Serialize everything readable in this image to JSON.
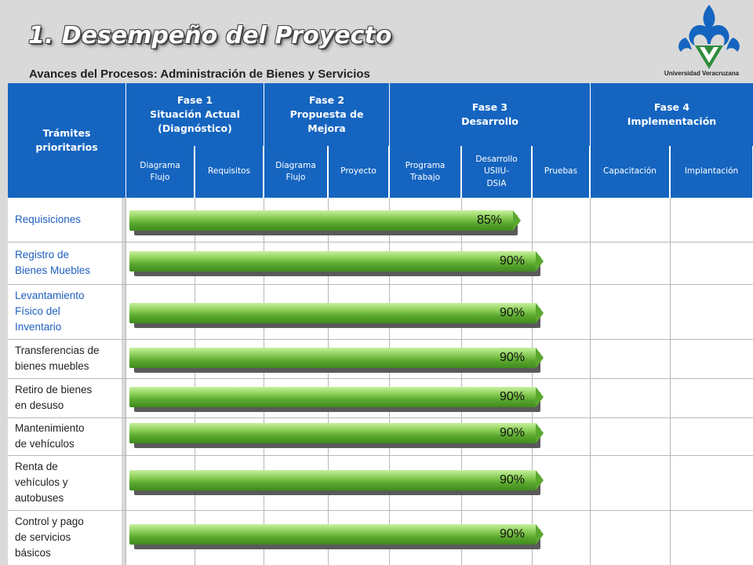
{
  "title": "1. Desempeño del Proyecto",
  "subtitle": "Avances del Procesos:  Administración de Bienes y Servicios",
  "logo_caption": "Universidad Veracruzana",
  "colors": {
    "header_blue": "#1565c0",
    "bar_green": "#5aa72e",
    "link_blue": "#1f5fbf"
  },
  "table": {
    "row_header": "Trámites prioritarios",
    "phases": [
      {
        "label": "Fase 1\nSituación Actual\n(Diagnóstico)"
      },
      {
        "label": "Fase 2\nPropuesta de\nMejora"
      },
      {
        "label": "Fase 3\nDesarrollo"
      },
      {
        "label": "Fase 4\nImplementación"
      }
    ],
    "subcolumns": [
      "Diagrama\nFlujo",
      "Requisitos",
      "Diagrama\nFlujo",
      "Proyecto",
      "Programa\nTrabajo",
      "Desarrollo\nUSIIU-\nDSIA",
      "Pruebas",
      "Capacitación",
      "Implantación"
    ],
    "rows": [
      {
        "label": "Requisiciones",
        "progress": "85%",
        "progress_value": 85
      },
      {
        "label": "Registro de\nBienes Muebles",
        "progress": "90%",
        "progress_value": 90
      },
      {
        "label": "Levantamiento\nFísico del\nInventario",
        "progress": "90%",
        "progress_value": 90
      },
      {
        "label": "Transferencias de\nbienes muebles",
        "progress": "90%",
        "progress_value": 90
      },
      {
        "label": "Retiro de bienes\nen desuso",
        "progress": "90%",
        "progress_value": 90
      },
      {
        "label": "Mantenimiento\nde vehículos",
        "progress": "90%",
        "progress_value": 90
      },
      {
        "label": "Renta de\nvehículos y\nautobuses",
        "progress": "90%",
        "progress_value": 90
      },
      {
        "label": "Control y pago\nde servicios\nbásicos",
        "progress": "90%",
        "progress_value": 90
      }
    ]
  }
}
